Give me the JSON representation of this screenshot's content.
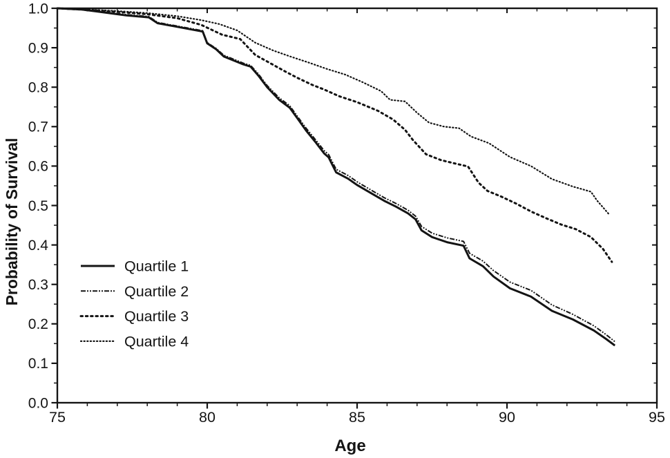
{
  "figure": {
    "kind": "scanned statistical figure",
    "background_color": "#ffffff",
    "ink_color": "#141414"
  },
  "chart_data": {
    "type": "line",
    "chart_kind": "kaplan-meier-survival-curves",
    "xlabel": "Age",
    "ylabel": "Probability of Survival",
    "xlim": [
      75,
      95
    ],
    "ylim": [
      0.0,
      1.0
    ],
    "grid": false,
    "legend_position": "inside-left-middle",
    "x_major_ticks": [
      75,
      80,
      85,
      90,
      95
    ],
    "x_tick_labels": [
      "75",
      "80",
      "85",
      "90",
      "95"
    ],
    "x_minor_step": 1,
    "y_major_ticks": [
      0.0,
      0.1,
      0.2,
      0.3,
      0.4,
      0.5,
      0.6,
      0.7,
      0.8,
      0.9,
      1.0
    ],
    "y_tick_labels": [
      "0.0",
      "0.1",
      "0.2",
      "0.3",
      "0.4",
      "0.5",
      "0.6",
      "0.7",
      "0.8",
      "0.9",
      "1.0"
    ],
    "y_minor_step": 0.05,
    "series": [
      {
        "name": "Quartile 1",
        "line_style": "solid",
        "points": [
          [
            75,
            1.0
          ],
          [
            75.8,
            0.997
          ],
          [
            76.5,
            0.99
          ],
          [
            77.3,
            0.982
          ],
          [
            78.05,
            0.977
          ],
          [
            78.35,
            0.962
          ],
          [
            79,
            0.953
          ],
          [
            79.85,
            0.941
          ],
          [
            80.0,
            0.911
          ],
          [
            80.3,
            0.896
          ],
          [
            80.55,
            0.878
          ],
          [
            81.2,
            0.858
          ],
          [
            81.45,
            0.852
          ],
          [
            81.7,
            0.83
          ],
          [
            82.0,
            0.8
          ],
          [
            82.4,
            0.768
          ],
          [
            82.75,
            0.748
          ],
          [
            83.0,
            0.722
          ],
          [
            83.3,
            0.69
          ],
          [
            83.6,
            0.662
          ],
          [
            83.9,
            0.632
          ],
          [
            84.05,
            0.622
          ],
          [
            84.3,
            0.584
          ],
          [
            84.7,
            0.568
          ],
          [
            85.0,
            0.552
          ],
          [
            85.45,
            0.532
          ],
          [
            85.9,
            0.512
          ],
          [
            86.3,
            0.497
          ],
          [
            86.7,
            0.48
          ],
          [
            86.95,
            0.465
          ],
          [
            87.15,
            0.437
          ],
          [
            87.5,
            0.42
          ],
          [
            88.0,
            0.407
          ],
          [
            88.55,
            0.398
          ],
          [
            88.75,
            0.366
          ],
          [
            89.2,
            0.346
          ],
          [
            89.55,
            0.32
          ],
          [
            90.1,
            0.29
          ],
          [
            90.8,
            0.269
          ],
          [
            91.5,
            0.233
          ],
          [
            92.2,
            0.211
          ],
          [
            92.9,
            0.183
          ],
          [
            93.3,
            0.162
          ],
          [
            93.6,
            0.145
          ]
        ]
      },
      {
        "name": "Quartile 2",
        "line_style": "fine-dash-dot",
        "points": [
          [
            75,
            1.0
          ],
          [
            75.8,
            0.998
          ],
          [
            76.5,
            0.991
          ],
          [
            77.3,
            0.984
          ],
          [
            78.05,
            0.979
          ],
          [
            78.35,
            0.964
          ],
          [
            79,
            0.955
          ],
          [
            79.85,
            0.943
          ],
          [
            80.0,
            0.913
          ],
          [
            80.3,
            0.898
          ],
          [
            80.55,
            0.881
          ],
          [
            81.2,
            0.861
          ],
          [
            81.45,
            0.855
          ],
          [
            81.7,
            0.834
          ],
          [
            82.0,
            0.804
          ],
          [
            82.4,
            0.773
          ],
          [
            82.75,
            0.753
          ],
          [
            83.0,
            0.727
          ],
          [
            83.3,
            0.696
          ],
          [
            83.6,
            0.668
          ],
          [
            83.9,
            0.639
          ],
          [
            84.05,
            0.629
          ],
          [
            84.3,
            0.592
          ],
          [
            84.7,
            0.576
          ],
          [
            85.0,
            0.56
          ],
          [
            85.45,
            0.54
          ],
          [
            85.9,
            0.52
          ],
          [
            86.3,
            0.505
          ],
          [
            86.7,
            0.488
          ],
          [
            86.95,
            0.473
          ],
          [
            87.15,
            0.447
          ],
          [
            87.5,
            0.43
          ],
          [
            88.0,
            0.418
          ],
          [
            88.55,
            0.409
          ],
          [
            88.75,
            0.379
          ],
          [
            89.2,
            0.359
          ],
          [
            89.55,
            0.335
          ],
          [
            90.1,
            0.306
          ],
          [
            90.8,
            0.285
          ],
          [
            91.5,
            0.248
          ],
          [
            92.2,
            0.224
          ],
          [
            92.9,
            0.195
          ],
          [
            93.3,
            0.173
          ],
          [
            93.6,
            0.155
          ]
        ]
      },
      {
        "name": "Quartile 3",
        "line_style": "bold-dotted",
        "points": [
          [
            75,
            1.0
          ],
          [
            76,
            0.996
          ],
          [
            77,
            0.991
          ],
          [
            78,
            0.985
          ],
          [
            79,
            0.975
          ],
          [
            79.8,
            0.958
          ],
          [
            80.5,
            0.933
          ],
          [
            81.1,
            0.922
          ],
          [
            81.6,
            0.882
          ],
          [
            82.1,
            0.861
          ],
          [
            82.6,
            0.84
          ],
          [
            83.0,
            0.824
          ],
          [
            83.5,
            0.806
          ],
          [
            83.9,
            0.794
          ],
          [
            84.4,
            0.777
          ],
          [
            85.0,
            0.762
          ],
          [
            85.7,
            0.74
          ],
          [
            86.2,
            0.718
          ],
          [
            86.6,
            0.692
          ],
          [
            86.85,
            0.667
          ],
          [
            87.3,
            0.63
          ],
          [
            87.8,
            0.615
          ],
          [
            88.3,
            0.606
          ],
          [
            88.7,
            0.599
          ],
          [
            89.05,
            0.558
          ],
          [
            89.35,
            0.537
          ],
          [
            89.8,
            0.523
          ],
          [
            90.3,
            0.505
          ],
          [
            90.8,
            0.485
          ],
          [
            91.3,
            0.468
          ],
          [
            91.8,
            0.452
          ],
          [
            92.3,
            0.44
          ],
          [
            92.8,
            0.42
          ],
          [
            93.2,
            0.39
          ],
          [
            93.5,
            0.357
          ]
        ]
      },
      {
        "name": "Quartile 4",
        "line_style": "fine-dotted",
        "points": [
          [
            75,
            1.0
          ],
          [
            76,
            0.997
          ],
          [
            77,
            0.993
          ],
          [
            78,
            0.988
          ],
          [
            79,
            0.98
          ],
          [
            79.8,
            0.97
          ],
          [
            80.4,
            0.96
          ],
          [
            81.0,
            0.944
          ],
          [
            81.6,
            0.913
          ],
          [
            82.2,
            0.893
          ],
          [
            82.8,
            0.877
          ],
          [
            83.4,
            0.862
          ],
          [
            84.0,
            0.846
          ],
          [
            84.6,
            0.832
          ],
          [
            85.2,
            0.812
          ],
          [
            85.8,
            0.79
          ],
          [
            86.1,
            0.768
          ],
          [
            86.6,
            0.764
          ],
          [
            87.0,
            0.735
          ],
          [
            87.4,
            0.71
          ],
          [
            87.9,
            0.7
          ],
          [
            88.4,
            0.696
          ],
          [
            88.8,
            0.675
          ],
          [
            89.4,
            0.658
          ],
          [
            90.1,
            0.623
          ],
          [
            90.8,
            0.6
          ],
          [
            91.5,
            0.567
          ],
          [
            92.2,
            0.548
          ],
          [
            92.8,
            0.535
          ],
          [
            93.0,
            0.513
          ],
          [
            93.4,
            0.478
          ]
        ]
      }
    ]
  }
}
